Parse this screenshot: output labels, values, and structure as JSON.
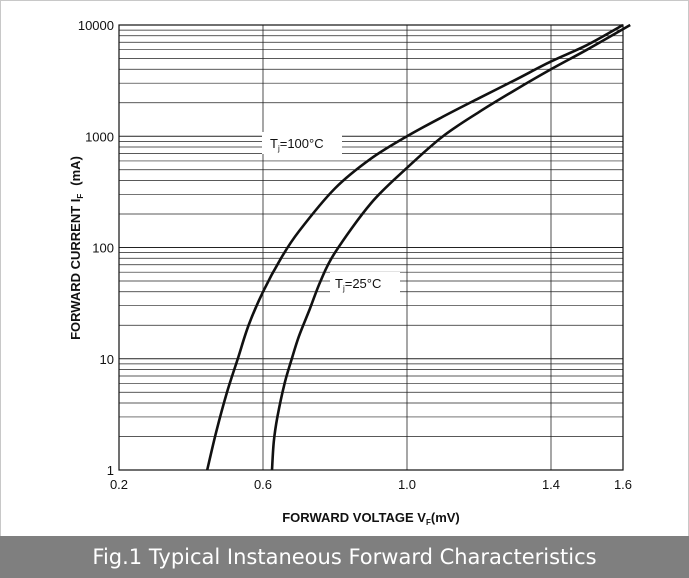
{
  "chart_data": {
    "type": "line",
    "title": "",
    "xlabel": "FORWARD VOLTAGE  V",
    "xlabel_sub": "F",
    "xlabel_suffix": "(mV)",
    "ylabel": "FORWARD CURRENT I",
    "ylabel_sub": "F",
    "ylabel_suffix": "(mA)",
    "xlim": [
      0.2,
      1.6
    ],
    "ylim": [
      1,
      10000
    ],
    "y_scale": "log",
    "grid": true,
    "x_ticks": [
      "0.2",
      "0.6",
      "1.0",
      "1.4",
      "1.6"
    ],
    "x_tick_values": [
      0.2,
      0.6,
      1.0,
      1.4,
      1.6
    ],
    "y_ticks": [
      "1",
      "10",
      "100",
      "1000",
      "10000"
    ],
    "y_tick_values": [
      1,
      10,
      100,
      1000,
      10000
    ],
    "series": [
      {
        "name_main": "T",
        "name_sub": "j",
        "name_suffix": "=100°C",
        "x": [
          0.445,
          0.47,
          0.5,
          0.53,
          0.56,
          0.6,
          0.65,
          0.7,
          0.8,
          0.9,
          1.0,
          1.1,
          1.2,
          1.3,
          1.4,
          1.5,
          1.6
        ],
        "y": [
          1,
          2.2,
          5,
          10,
          20,
          40,
          80,
          140,
          340,
          630,
          1000,
          1500,
          2200,
          3200,
          4700,
          6600,
          10000
        ]
      },
      {
        "name_main": "T",
        "name_sub": "j",
        "name_suffix": "=25°C",
        "x": [
          0.625,
          0.63,
          0.64,
          0.66,
          0.68,
          0.7,
          0.73,
          0.76,
          0.8,
          0.9,
          1.0,
          1.1,
          1.2,
          1.3,
          1.4,
          1.5,
          1.62
        ],
        "y": [
          1,
          1.8,
          3,
          6,
          10,
          16,
          28,
          50,
          90,
          250,
          520,
          1000,
          1650,
          2600,
          4000,
          6000,
          10000
        ]
      }
    ]
  },
  "caption": "Fig.1 Typical Instaneous Forward Characteristics"
}
